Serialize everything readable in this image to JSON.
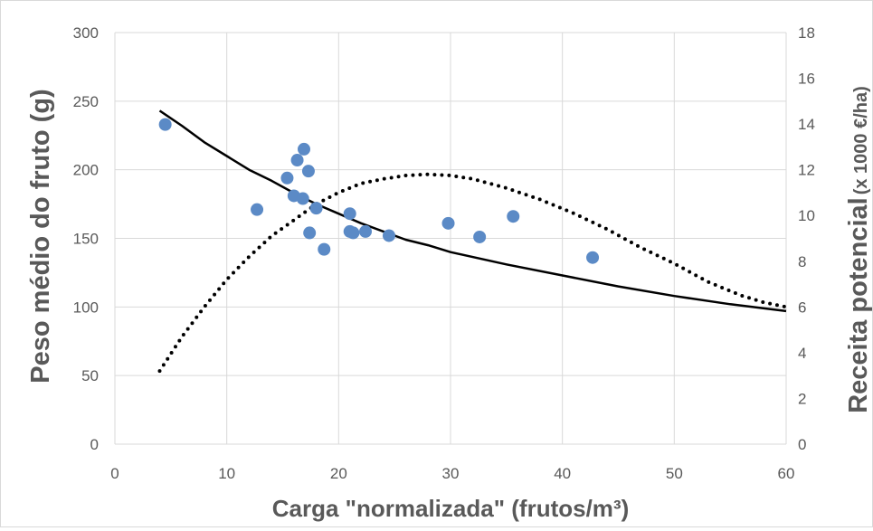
{
  "chart_data": {
    "type": "scatter",
    "xlabel": "Carga \"normalizada\" (frutos/m³)",
    "ylabel_left": "Peso médio do fruto (g)",
    "ylabel_right_main": "Receita potencial",
    "ylabel_right_unit": "(x 1000 €/ha)",
    "xlim": [
      0,
      60
    ],
    "ylim_left": [
      0,
      300
    ],
    "ylim_right": [
      0,
      18
    ],
    "x_ticks": [
      0,
      10,
      20,
      30,
      40,
      50,
      60
    ],
    "y_left_ticks": [
      0,
      50,
      100,
      150,
      200,
      250,
      300
    ],
    "y_right_ticks": [
      0,
      2,
      4,
      6,
      8,
      10,
      12,
      14,
      16,
      18
    ],
    "grid": true,
    "colors": {
      "points": "#5b8ac6",
      "lines": "#000000",
      "grid": "#d9d9d9",
      "text": "#595959"
    },
    "series": [
      {
        "kind": "scatter",
        "axis": "left",
        "x": [
          4.5,
          12.7,
          15.4,
          16.0,
          16.3,
          16.8,
          16.9,
          17.3,
          17.4,
          18.0,
          18.7,
          21.0,
          21.0,
          21.3,
          22.4,
          24.5,
          29.8,
          32.6,
          35.6,
          42.7
        ],
        "y": [
          233,
          171,
          194,
          181,
          207,
          179,
          215,
          199,
          154,
          172,
          142,
          168,
          155,
          154,
          155,
          152,
          161,
          151,
          166,
          136
        ]
      },
      {
        "kind": "line",
        "style": "solid",
        "axis": "left",
        "x": [
          4,
          6,
          8,
          10,
          12,
          14,
          16,
          18,
          20,
          22,
          24,
          26,
          28,
          30,
          35,
          40,
          45,
          50,
          55,
          60
        ],
        "y": [
          243,
          232,
          220,
          210,
          200,
          192,
          183,
          175,
          168,
          161,
          155,
          149,
          145,
          140,
          131,
          123,
          115,
          108,
          102,
          97
        ]
      },
      {
        "kind": "line",
        "style": "dotted",
        "axis": "right",
        "x": [
          4,
          6,
          8,
          10,
          12,
          14,
          16,
          18,
          20,
          22,
          24,
          26,
          28,
          30,
          32,
          35,
          38,
          41,
          44,
          47,
          50,
          53,
          56,
          58,
          60
        ],
        "y": [
          3.2,
          4.7,
          6.0,
          7.2,
          8.2,
          9.1,
          9.8,
          10.5,
          11.0,
          11.4,
          11.6,
          11.75,
          11.8,
          11.75,
          11.6,
          11.2,
          10.7,
          10.1,
          9.4,
          8.6,
          7.9,
          7.1,
          6.5,
          6.2,
          6.0
        ]
      }
    ]
  }
}
